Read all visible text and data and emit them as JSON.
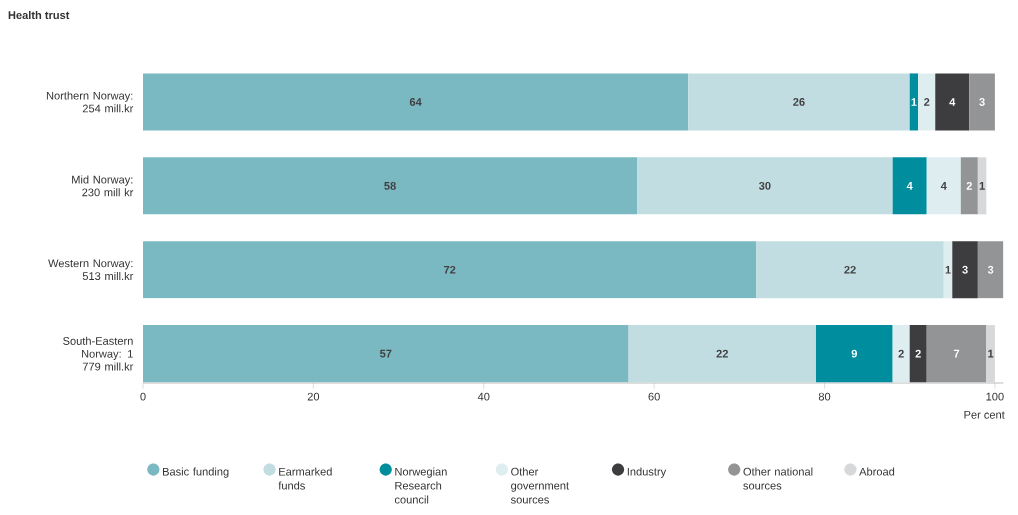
{
  "chart_data": {
    "type": "bar",
    "orientation": "horizontal",
    "stacked": true,
    "title": "Health trust",
    "xlabel": "Per cent",
    "categories": [
      "Northern Norway: 254 mill.kr",
      "Mid Norway: 230 mill kr",
      "Western Norway: 513 mill.kr",
      "South-Eastern Norway: 1 779 mill.kr"
    ],
    "series": [
      {
        "name": "Basic funding",
        "color": "#7ab8c2",
        "values": [
          64,
          58,
          72,
          57
        ]
      },
      {
        "name": "Earmarked funds",
        "color": "#c1dde1",
        "values": [
          26,
          30,
          22,
          22
        ]
      },
      {
        "name": "Norwegian Research council",
        "color": "#008e9e",
        "values": [
          1,
          4,
          null,
          9
        ]
      },
      {
        "name": "Other government sources",
        "color": "#deeef0",
        "values": [
          2,
          4,
          1,
          2
        ]
      },
      {
        "name": "Industry",
        "color": "#3d3d3f",
        "values": [
          4,
          null,
          3,
          2
        ]
      },
      {
        "name": "Other national sources",
        "color": "#939496",
        "values": [
          3,
          2,
          3,
          7
        ]
      },
      {
        "name": "Abroad",
        "color": "#d7d8d9",
        "values": [
          null,
          1,
          null,
          1
        ]
      }
    ],
    "xlim": [
      0,
      101
    ],
    "xticks": [
      0,
      20,
      40,
      60,
      80,
      100
    ],
    "data_labels": true,
    "legend": "bottom"
  }
}
